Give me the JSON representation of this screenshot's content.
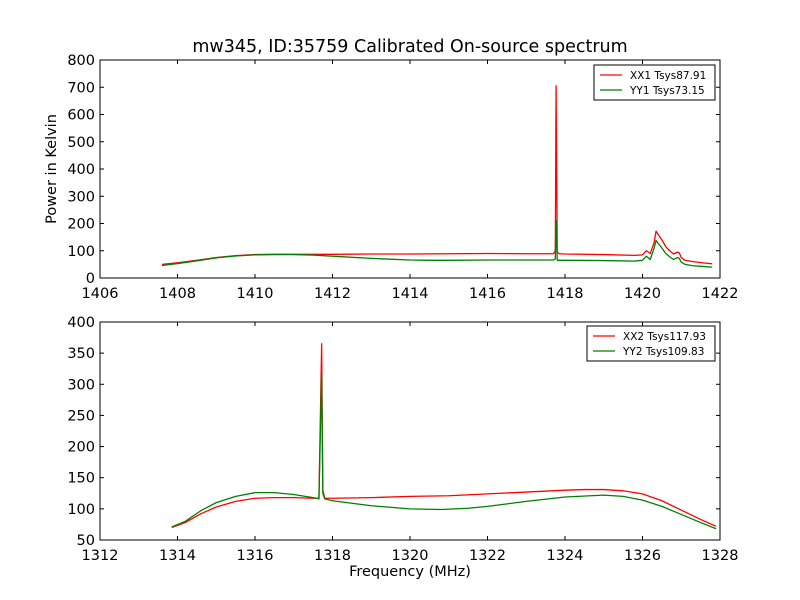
{
  "title": "mw345, ID:35759 Calibrated On-source spectrum",
  "chart_data": [
    {
      "type": "line",
      "title": "mw345, ID:35759 Calibrated On-source spectrum",
      "xlabel": "",
      "ylabel": "Power in Kelvin",
      "xlim": [
        1406,
        1422
      ],
      "ylim": [
        0,
        800
      ],
      "xticks": [
        1406,
        1408,
        1410,
        1412,
        1414,
        1416,
        1418,
        1420,
        1422
      ],
      "yticks": [
        0,
        100,
        200,
        300,
        400,
        500,
        600,
        700,
        800
      ],
      "legend": "top-right",
      "grid": false,
      "series": [
        {
          "name": "XX1 Tsys87.91",
          "color": "#ff0000",
          "x": [
            1407.6,
            1408.0,
            1408.5,
            1409.0,
            1409.5,
            1410.0,
            1410.5,
            1411.0,
            1412.0,
            1413.0,
            1414.0,
            1415.0,
            1416.0,
            1417.0,
            1417.7,
            1417.75,
            1417.77,
            1417.8,
            1417.85,
            1418.0,
            1419.0,
            1419.8,
            1420.0,
            1420.1,
            1420.2,
            1420.3,
            1420.35,
            1420.4,
            1420.5,
            1420.6,
            1420.7,
            1420.8,
            1420.9,
            1420.95,
            1421.0,
            1421.1,
            1421.3,
            1421.6,
            1421.8
          ],
          "y": [
            50,
            56,
            65,
            75,
            82,
            86,
            87,
            87,
            87,
            88,
            88,
            89,
            90,
            89,
            89,
            100,
            705,
            95,
            89,
            88,
            86,
            83,
            85,
            100,
            90,
            130,
            172,
            160,
            140,
            115,
            100,
            88,
            95,
            92,
            75,
            65,
            60,
            55,
            52
          ]
        },
        {
          "name": "YY1 Tsys73.15",
          "color": "#008000",
          "x": [
            1407.6,
            1408.0,
            1408.5,
            1409.0,
            1409.5,
            1410.0,
            1410.5,
            1411.0,
            1411.5,
            1412.0,
            1413.0,
            1414.0,
            1414.5,
            1415.0,
            1416.0,
            1417.0,
            1417.7,
            1417.75,
            1417.77,
            1417.8,
            1417.85,
            1418.0,
            1419.0,
            1419.8,
            1420.0,
            1420.1,
            1420.2,
            1420.3,
            1420.35,
            1420.4,
            1420.5,
            1420.6,
            1420.7,
            1420.8,
            1420.9,
            1420.95,
            1421.0,
            1421.1,
            1421.3,
            1421.6,
            1421.8
          ],
          "y": [
            46,
            53,
            63,
            74,
            81,
            85,
            86,
            86,
            84,
            80,
            72,
            66,
            65,
            65,
            66,
            66,
            66,
            70,
            210,
            65,
            65,
            65,
            64,
            62,
            65,
            80,
            68,
            110,
            138,
            128,
            110,
            90,
            78,
            68,
            75,
            72,
            58,
            50,
            45,
            42,
            40
          ]
        }
      ]
    },
    {
      "type": "line",
      "title": "",
      "xlabel": "Frequency (MHz)",
      "ylabel": "",
      "xlim": [
        1312,
        1328
      ],
      "ylim": [
        50,
        400
      ],
      "xticks": [
        1312,
        1314,
        1316,
        1318,
        1320,
        1322,
        1324,
        1326,
        1328
      ],
      "yticks": [
        50,
        100,
        150,
        200,
        250,
        300,
        350,
        400
      ],
      "legend": "top-right",
      "grid": false,
      "series": [
        {
          "name": "XX2 Tsys117.93",
          "color": "#ff0000",
          "x": [
            1313.85,
            1314.2,
            1314.6,
            1315.0,
            1315.5,
            1316.0,
            1316.5,
            1317.0,
            1317.5,
            1317.65,
            1317.72,
            1317.75,
            1317.8,
            1318.0,
            1319.0,
            1320.0,
            1321.0,
            1322.0,
            1323.0,
            1324.0,
            1324.5,
            1325.0,
            1325.5,
            1326.0,
            1326.5,
            1327.0,
            1327.5,
            1327.9
          ],
          "y": [
            70,
            78,
            92,
            103,
            112,
            117,
            118,
            118,
            117,
            117,
            365,
            130,
            117,
            117,
            118,
            120,
            121,
            124,
            127,
            130,
            131,
            131,
            129,
            124,
            113,
            98,
            83,
            72
          ]
        },
        {
          "name": "YY2 Tsys109.83",
          "color": "#008000",
          "x": [
            1313.85,
            1314.2,
            1314.6,
            1315.0,
            1315.5,
            1316.0,
            1316.5,
            1317.0,
            1317.5,
            1317.65,
            1317.72,
            1317.75,
            1317.8,
            1318.0,
            1318.5,
            1319.0,
            1320.0,
            1320.8,
            1321.5,
            1322.0,
            1323.0,
            1324.0,
            1325.0,
            1325.5,
            1326.0,
            1326.5,
            1327.0,
            1327.5,
            1327.9
          ],
          "y": [
            71,
            80,
            97,
            110,
            120,
            126,
            126,
            123,
            118,
            116,
            318,
            125,
            116,
            113,
            109,
            105,
            100,
            99,
            101,
            104,
            112,
            119,
            122,
            120,
            114,
            104,
            91,
            78,
            68
          ]
        }
      ]
    }
  ]
}
